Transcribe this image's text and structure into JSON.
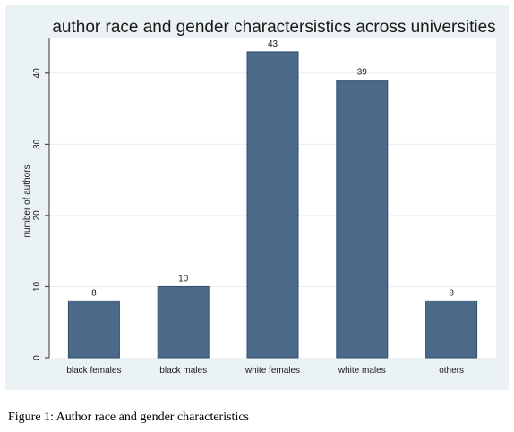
{
  "chart_data": {
    "type": "bar",
    "title": "author race and gender charactersistics across universities",
    "xlabel": "",
    "ylabel": "number of authors",
    "categories": [
      "black females",
      "black males",
      "white females",
      "white males",
      "others"
    ],
    "values": [
      8,
      10,
      43,
      39,
      8
    ],
    "data_labels": [
      "8",
      "10",
      "43",
      "39",
      "8"
    ],
    "ylim": [
      0,
      45
    ],
    "yticks": [
      0,
      10,
      20,
      30,
      40
    ],
    "ytick_labels": [
      "0",
      "10",
      "20",
      "30",
      "40"
    ],
    "grid": true,
    "legend": "none",
    "colors": {
      "bar": "#4b6a8a",
      "bar_edge": "#2f4f6f",
      "plot_bg": "#ffffff",
      "outer_bg": "#eaf2f3",
      "grid": "#e6eef0"
    }
  },
  "caption": "Figure 1: Author race and gender characteristics"
}
